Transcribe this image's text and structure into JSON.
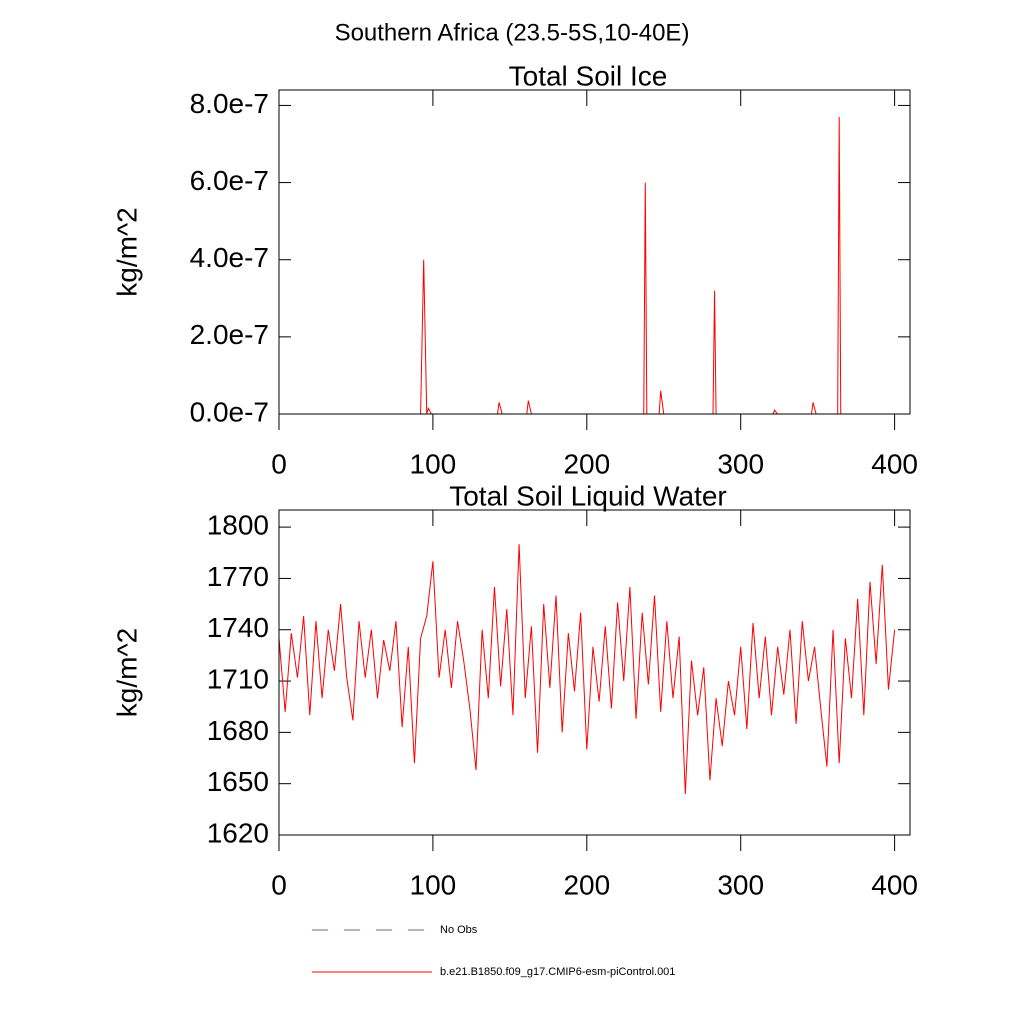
{
  "title": "Southern Africa (23.5-5S,10-40E)",
  "chart_data": [
    {
      "type": "line",
      "title": "Total Soil Ice",
      "ylabel": "kg/m^2",
      "xlim": [
        0,
        410
      ],
      "xticks": [
        0,
        100,
        200,
        300,
        400
      ],
      "ylim": [
        0,
        8.4e-07
      ],
      "yticks": [
        {
          "value": 0,
          "label": "0.0e-7"
        },
        {
          "value": 2e-07,
          "label": "2.0e-7"
        },
        {
          "value": 4e-07,
          "label": "4.0e-7"
        },
        {
          "value": 6e-07,
          "label": "6.0e-7"
        },
        {
          "value": 8e-07,
          "label": "8.0e-7"
        }
      ],
      "x": [
        1,
        92,
        94,
        96,
        97,
        99,
        142,
        143,
        145,
        161,
        162,
        164,
        237,
        238,
        239,
        247,
        248,
        250,
        282,
        283,
        284,
        321,
        322,
        324,
        346,
        347,
        349,
        363,
        364,
        365,
        400
      ],
      "series": [
        {
          "color": "#ff0000",
          "values": [
            0,
            0,
            4e-07,
            0,
            1.5e-08,
            0,
            0,
            3e-08,
            0,
            0,
            3.5e-08,
            0,
            0,
            6e-07,
            0,
            0,
            6e-08,
            0,
            0,
            3.2e-07,
            0,
            0,
            1e-08,
            0,
            0,
            3e-08,
            0,
            0,
            7.7e-07,
            0,
            0
          ]
        }
      ]
    },
    {
      "type": "line",
      "title": "Total Soil Liquid Water",
      "ylabel": "kg/m^2",
      "xlim": [
        0,
        410
      ],
      "xticks": [
        0,
        100,
        200,
        300,
        400
      ],
      "ylim": [
        1620,
        1810
      ],
      "yticks": [
        1620,
        1650,
        1680,
        1710,
        1740,
        1770,
        1800
      ],
      "x": [
        0,
        4,
        8,
        12,
        16,
        20,
        24,
        28,
        32,
        36,
        40,
        44,
        48,
        52,
        56,
        60,
        64,
        68,
        72,
        76,
        80,
        84,
        88,
        92,
        96,
        100,
        104,
        108,
        112,
        116,
        120,
        124,
        128,
        132,
        136,
        140,
        144,
        148,
        152,
        156,
        160,
        164,
        168,
        172,
        176,
        180,
        184,
        188,
        192,
        196,
        200,
        204,
        208,
        212,
        216,
        220,
        224,
        228,
        232,
        236,
        240,
        244,
        248,
        252,
        256,
        260,
        264,
        268,
        272,
        276,
        280,
        284,
        288,
        292,
        296,
        300,
        304,
        308,
        312,
        316,
        320,
        324,
        328,
        332,
        336,
        340,
        344,
        348,
        352,
        356,
        360,
        364,
        368,
        372,
        376,
        380,
        384,
        388,
        392,
        396,
        400
      ],
      "series": [
        {
          "color": "#ff0000",
          "values": [
            1735,
            1692,
            1738,
            1712,
            1748,
            1690,
            1745,
            1700,
            1740,
            1716,
            1755,
            1712,
            1687,
            1745,
            1712,
            1740,
            1700,
            1734,
            1716,
            1745,
            1683,
            1730,
            1662,
            1735,
            1748,
            1780,
            1712,
            1740,
            1706,
            1745,
            1722,
            1694,
            1658,
            1740,
            1700,
            1765,
            1707,
            1752,
            1690,
            1790,
            1700,
            1742,
            1668,
            1755,
            1706,
            1760,
            1680,
            1738,
            1704,
            1750,
            1670,
            1730,
            1698,
            1742,
            1694,
            1756,
            1710,
            1765,
            1688,
            1750,
            1708,
            1760,
            1692,
            1745,
            1700,
            1736,
            1644,
            1722,
            1690,
            1718,
            1652,
            1700,
            1672,
            1710,
            1690,
            1730,
            1682,
            1744,
            1700,
            1736,
            1690,
            1730,
            1702,
            1740,
            1685,
            1745,
            1710,
            1730,
            1694,
            1660,
            1740,
            1662,
            1735,
            1700,
            1758,
            1690,
            1768,
            1720,
            1778,
            1705,
            1740
          ]
        }
      ]
    }
  ],
  "legend": [
    {
      "name": "No Obs",
      "color": "#5a6a9a",
      "dashed": true
    },
    {
      "name": "b.e21.B1850.f09_g17.CMIP6-esm-piControl.001",
      "color": "#ff0000",
      "dashed": false
    }
  ]
}
